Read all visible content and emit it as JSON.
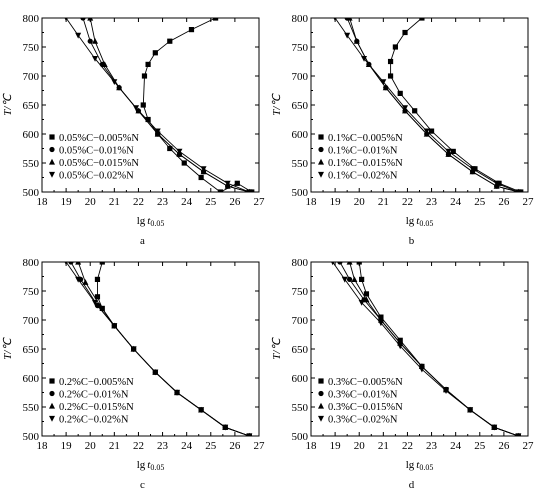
{
  "chart_data": [
    {
      "type": "line",
      "panel_label": "a",
      "xlabel": "lg t0.05",
      "ylabel": "T/℃",
      "xlim": [
        18,
        27
      ],
      "ylim": [
        500,
        800
      ],
      "xticks": [
        18,
        19,
        20,
        21,
        22,
        23,
        24,
        25,
        26,
        27
      ],
      "yticks": [
        500,
        550,
        600,
        650,
        700,
        750,
        800
      ],
      "legend_position": "bottom-left",
      "series": [
        {
          "name": "0.05%C−0.005%N",
          "marker": "square",
          "x": [
            25.2,
            24.2,
            23.3,
            22.7,
            22.4,
            22.25,
            22.2,
            22.4,
            22.8,
            23.3,
            23.9,
            24.6,
            25.4,
            26.1,
            26.7
          ],
          "y": [
            800,
            780,
            760,
            740,
            720,
            700,
            650,
            625,
            600,
            575,
            550,
            525,
            500,
            515,
            500
          ]
        },
        {
          "name": "0.05%C−0.01%N",
          "marker": "circle",
          "x": [
            19.7,
            20.0,
            20.5,
            21.2,
            22.0,
            22.8,
            23.7,
            24.7,
            25.7,
            26.6
          ],
          "y": [
            800,
            760,
            720,
            680,
            640,
            600,
            565,
            535,
            510,
            500
          ]
        },
        {
          "name": "0.05%C−0.015%N",
          "marker": "triangle-up",
          "x": [
            20.0,
            20.2,
            20.6,
            21.2,
            22.0,
            22.8,
            23.7,
            24.7,
            25.7,
            26.6
          ],
          "y": [
            800,
            760,
            720,
            680,
            640,
            600,
            565,
            535,
            510,
            500
          ]
        },
        {
          "name": "0.05%C−0.02%N",
          "marker": "triangle-down",
          "x": [
            19.0,
            19.5,
            20.2,
            21.0,
            21.9,
            22.8,
            23.7,
            24.7,
            25.7,
            26.6
          ],
          "y": [
            800,
            770,
            730,
            690,
            645,
            605,
            570,
            540,
            515,
            500
          ]
        }
      ]
    },
    {
      "type": "line",
      "panel_label": "b",
      "xlabel": "lg t0.05",
      "ylabel": "T/℃",
      "xlim": [
        18,
        27
      ],
      "ylim": [
        500,
        800
      ],
      "xticks": [
        18,
        19,
        20,
        21,
        22,
        23,
        24,
        25,
        26,
        27
      ],
      "yticks": [
        500,
        550,
        600,
        650,
        700,
        750,
        800
      ],
      "legend_position": "bottom-left",
      "series": [
        {
          "name": "0.1%C−0.005%N",
          "marker": "square",
          "x": [
            22.6,
            21.9,
            21.5,
            21.3,
            21.3,
            21.7,
            22.3,
            23.0,
            23.9,
            24.8,
            25.8,
            26.7
          ],
          "y": [
            800,
            775,
            750,
            725,
            700,
            670,
            640,
            605,
            570,
            540,
            515,
            500
          ]
        },
        {
          "name": "0.1%C−0.01%N",
          "marker": "circle",
          "x": [
            19.5,
            19.9,
            20.4,
            21.1,
            21.9,
            22.8,
            23.7,
            24.7,
            25.7,
            26.6
          ],
          "y": [
            800,
            760,
            720,
            680,
            640,
            600,
            565,
            535,
            510,
            500
          ]
        },
        {
          "name": "0.1%C−0.015%N",
          "marker": "triangle-up",
          "x": [
            19.6,
            19.9,
            20.4,
            21.1,
            21.9,
            22.8,
            23.7,
            24.7,
            25.7,
            26.6
          ],
          "y": [
            800,
            760,
            720,
            680,
            640,
            600,
            565,
            535,
            510,
            500
          ]
        },
        {
          "name": "0.1%C−0.02%N",
          "marker": "triangle-down",
          "x": [
            19.0,
            19.5,
            20.2,
            21.0,
            21.9,
            22.8,
            23.7,
            24.7,
            25.7,
            26.6
          ],
          "y": [
            800,
            770,
            730,
            690,
            645,
            605,
            570,
            540,
            515,
            500
          ]
        }
      ]
    },
    {
      "type": "line",
      "panel_label": "c",
      "xlabel": "lg t0.05",
      "ylabel": "T/℃",
      "xlim": [
        18,
        27
      ],
      "ylim": [
        500,
        800
      ],
      "xticks": [
        18,
        19,
        20,
        21,
        22,
        23,
        24,
        25,
        26,
        27
      ],
      "yticks": [
        500,
        550,
        600,
        650,
        700,
        750,
        800
      ],
      "legend_position": "bottom-left",
      "series": [
        {
          "name": "0.2%C−0.005%N",
          "marker": "square",
          "x": [
            20.5,
            20.3,
            20.3,
            20.5,
            21.0,
            21.8,
            22.7,
            23.6,
            24.6,
            25.6,
            26.6
          ],
          "y": [
            800,
            770,
            740,
            720,
            690,
            650,
            610,
            575,
            545,
            515,
            500
          ]
        },
        {
          "name": "0.2%C−0.01%N",
          "marker": "circle",
          "x": [
            19.2,
            19.6,
            20.3,
            21.0,
            21.8,
            22.7,
            23.6,
            24.6,
            25.6,
            26.6
          ],
          "y": [
            800,
            770,
            725,
            690,
            650,
            610,
            575,
            545,
            515,
            500
          ]
        },
        {
          "name": "0.2%C−0.015%N",
          "marker": "triangle-up",
          "x": [
            19.5,
            19.8,
            20.4,
            21.0,
            21.8,
            22.7,
            23.6,
            24.6,
            25.6,
            26.6
          ],
          "y": [
            800,
            765,
            725,
            690,
            650,
            610,
            575,
            545,
            515,
            500
          ]
        },
        {
          "name": "0.2%C−0.02%N",
          "marker": "triangle-down",
          "x": [
            19.0,
            19.5,
            20.2,
            21.0,
            21.8,
            22.7,
            23.6,
            24.6,
            25.6,
            26.6
          ],
          "y": [
            800,
            770,
            730,
            690,
            650,
            610,
            575,
            545,
            515,
            500
          ]
        }
      ]
    },
    {
      "type": "line",
      "panel_label": "d",
      "xlabel": "lg t0.05",
      "ylabel": "T/℃",
      "xlim": [
        18,
        27
      ],
      "ylim": [
        500,
        800
      ],
      "xticks": [
        18,
        19,
        20,
        21,
        22,
        23,
        24,
        25,
        26,
        27
      ],
      "yticks": [
        500,
        550,
        600,
        650,
        700,
        750,
        800
      ],
      "legend_position": "bottom-left",
      "series": [
        {
          "name": "0.3%C−0.005%N",
          "marker": "square",
          "x": [
            20.0,
            20.1,
            20.3,
            20.9,
            21.7,
            22.6,
            23.6,
            24.6,
            25.6,
            26.6
          ],
          "y": [
            800,
            770,
            745,
            705,
            665,
            620,
            580,
            545,
            515,
            500
          ]
        },
        {
          "name": "0.3%C−0.01%N",
          "marker": "circle",
          "x": [
            19.2,
            19.6,
            20.2,
            20.9,
            21.7,
            22.6,
            23.6,
            24.6,
            25.6,
            26.6
          ],
          "y": [
            800,
            770,
            735,
            700,
            660,
            620,
            580,
            545,
            515,
            500
          ]
        },
        {
          "name": "0.3%C−0.015%N",
          "marker": "triangle-up",
          "x": [
            19.6,
            19.8,
            20.3,
            20.9,
            21.7,
            22.6,
            23.6,
            24.6,
            25.6,
            26.6
          ],
          "y": [
            800,
            770,
            735,
            700,
            660,
            620,
            580,
            545,
            515,
            500
          ]
        },
        {
          "name": "0.3%C−0.02%N",
          "marker": "triangle-down",
          "x": [
            18.9,
            19.4,
            20.1,
            20.9,
            21.7,
            22.6,
            23.6,
            24.6,
            25.6,
            26.6
          ],
          "y": [
            800,
            770,
            730,
            695,
            655,
            615,
            578,
            545,
            515,
            500
          ]
        }
      ]
    }
  ]
}
